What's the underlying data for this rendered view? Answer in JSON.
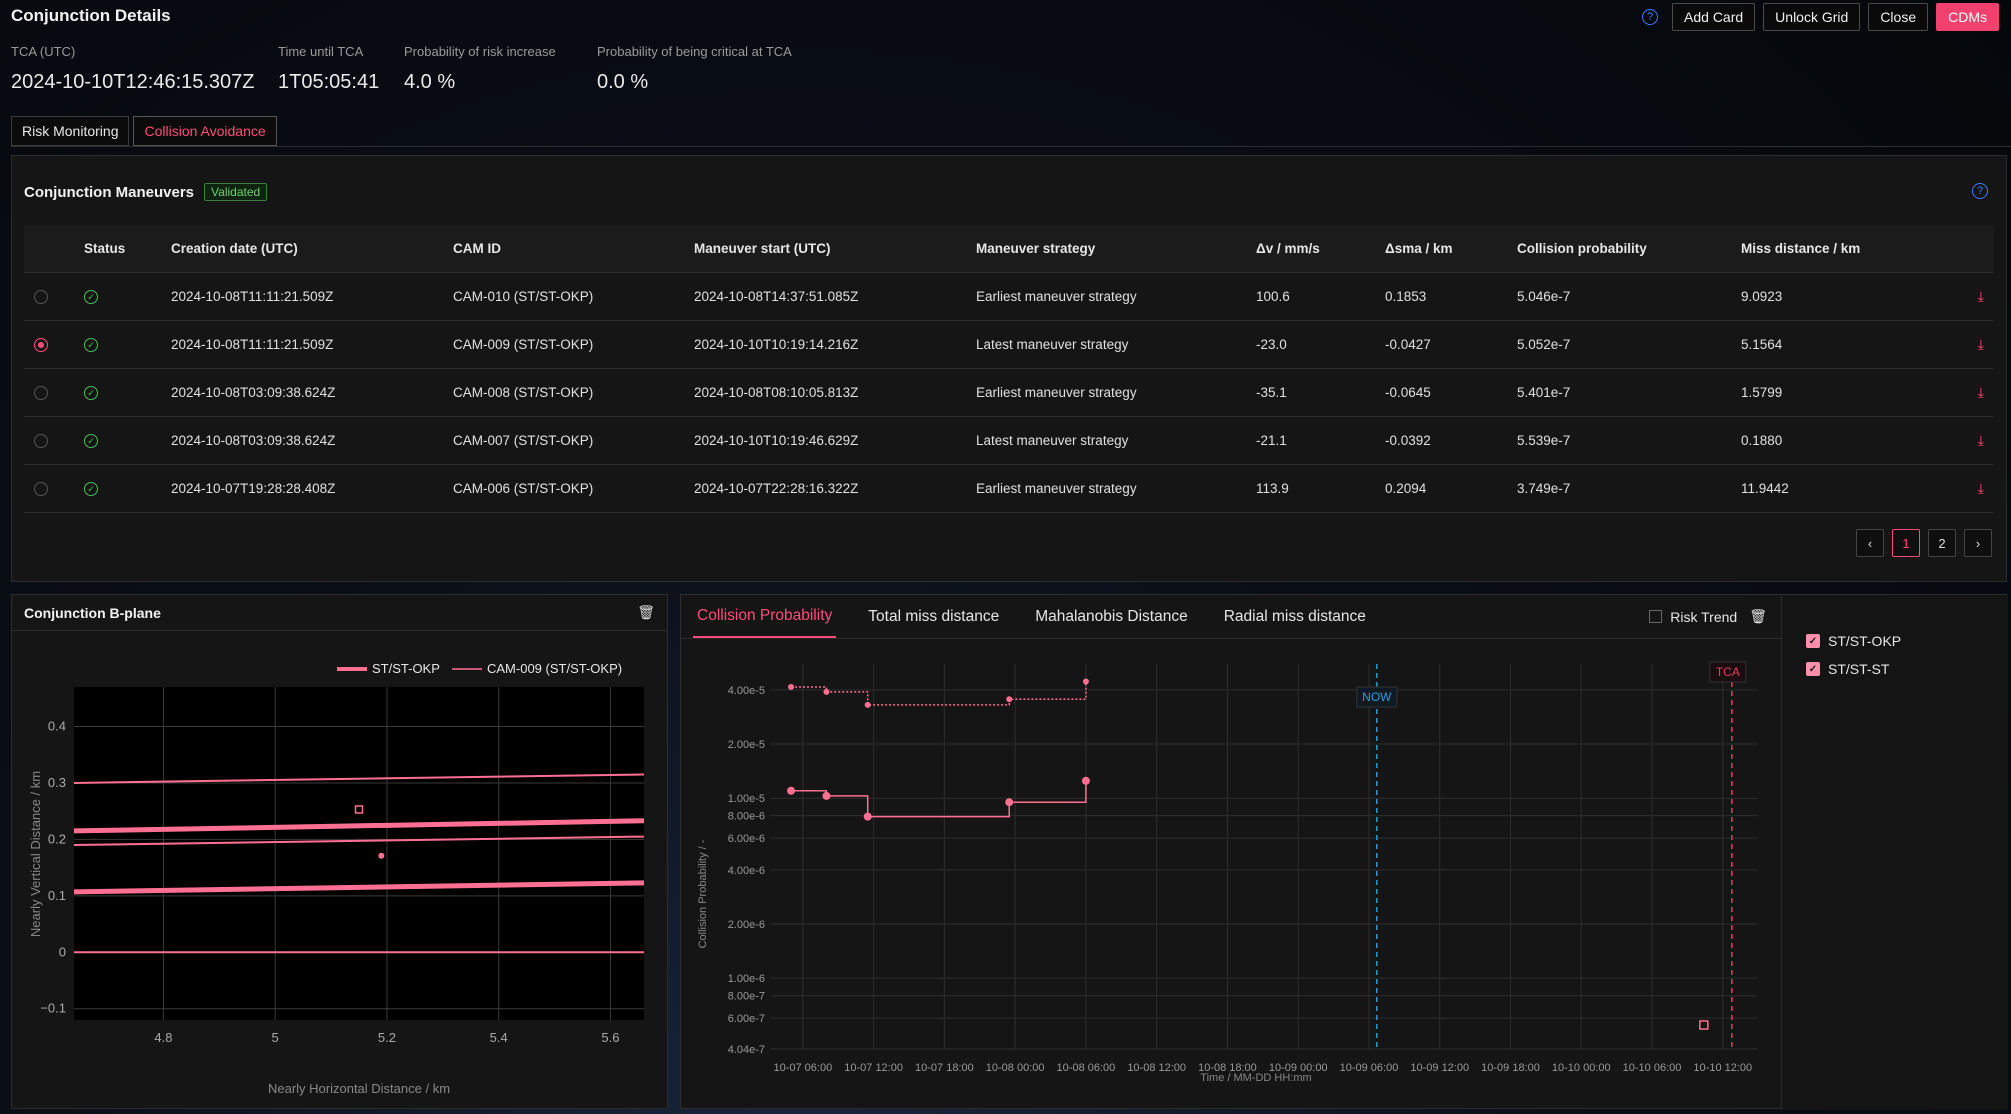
{
  "header": {
    "title": "Conjunction Details",
    "buttons": {
      "add_card": "Add Card",
      "unlock_grid": "Unlock Grid",
      "close": "Close",
      "cdms": "CDMs"
    },
    "help": "?"
  },
  "stats": [
    {
      "label": "TCA (UTC)",
      "value": "2024-10-10T12:46:15.307Z"
    },
    {
      "label": "Time until TCA",
      "value": "1T05:05:41"
    },
    {
      "label": "Probability of risk increase",
      "value": "4.0 %"
    },
    {
      "label": "Probability of being critical at TCA",
      "value": "0.0 %"
    }
  ],
  "tabs": [
    "Risk Monitoring",
    "Collision Avoidance"
  ],
  "maneuvers": {
    "title": "Conjunction Maneuvers",
    "badge": "Validated",
    "columns": [
      "Status",
      "Creation date (UTC)",
      "CAM ID",
      "Maneuver start (UTC)",
      "Maneuver strategy",
      "Δv / mm/s",
      "Δsma / km",
      "Collision probability",
      "Miss distance / km"
    ],
    "rows": [
      [
        "2024-10-08T11:11:21.509Z",
        "CAM-010 (ST/ST-OKP)",
        "2024-10-08T14:37:51.085Z",
        "Earliest maneuver strategy",
        "100.6",
        "0.1853",
        "5.046e-7",
        "9.0923"
      ],
      [
        "2024-10-08T11:11:21.509Z",
        "CAM-009 (ST/ST-OKP)",
        "2024-10-10T10:19:14.216Z",
        "Latest maneuver strategy",
        "-23.0",
        "-0.0427",
        "5.052e-7",
        "5.1564"
      ],
      [
        "2024-10-08T03:09:38.624Z",
        "CAM-008 (ST/ST-OKP)",
        "2024-10-08T08:10:05.813Z",
        "Earliest maneuver strategy",
        "-35.1",
        "-0.0645",
        "5.401e-7",
        "1.5799"
      ],
      [
        "2024-10-08T03:09:38.624Z",
        "CAM-007 (ST/ST-OKP)",
        "2024-10-10T10:19:46.629Z",
        "Latest maneuver strategy",
        "-21.1",
        "-0.0392",
        "5.539e-7",
        "0.1880"
      ],
      [
        "2024-10-07T19:28:28.408Z",
        "CAM-006 (ST/ST-OKP)",
        "2024-10-07T22:28:16.322Z",
        "Earliest maneuver strategy",
        "113.9",
        "0.2094",
        "3.749e-7",
        "11.9442"
      ]
    ],
    "selected_row": 1,
    "pages": [
      "1",
      "2"
    ],
    "current_page": 1
  },
  "bplane": {
    "title": "Conjunction B-plane",
    "legend": [
      "ST/ST-OKP",
      "CAM-009 (ST/ST-OKP)"
    ],
    "xlabel": "Nearly Horizontal Distance / km",
    "ylabel": "Nearly Vertical Distance / km",
    "xticks": [
      "4.8",
      "5",
      "5.2",
      "5.4",
      "5.6"
    ],
    "yticks": [
      "0.4",
      "0.3",
      "0.2",
      "0.1",
      "0",
      "−0.1"
    ]
  },
  "prob": {
    "tabs": [
      "Collision Probability",
      "Total miss distance",
      "Mahalanobis Distance",
      "Radial miss distance"
    ],
    "risk_trend": "Risk Trend",
    "legend": [
      "ST/ST-OKP",
      "ST/ST-ST"
    ],
    "ylabel": "Collision Probability / -",
    "xlabel": "Time / MM-DD HH:mm",
    "now_label": "NOW",
    "tca_label": "TCA",
    "yticks": [
      "4.00e-5",
      "2.00e-5",
      "1.00e-5",
      "8.00e-6",
      "6.00e-6",
      "4.00e-6",
      "2.00e-6",
      "1.00e-6",
      "8.00e-7",
      "6.00e-7",
      "4.04e-7"
    ],
    "xticks": [
      "10-07 06:00",
      "10-07 12:00",
      "10-07 18:00",
      "10-08 00:00",
      "10-08 06:00",
      "10-08 12:00",
      "10-08 18:00",
      "10-09 00:00",
      "10-09 06:00",
      "10-09 12:00",
      "10-09 18:00",
      "10-10 00:00",
      "10-10 06:00",
      "10-10 12:00"
    ]
  },
  "colors": {
    "accent": "#ff4d7a",
    "line": "#ff6f91",
    "now": "#2f9bd6",
    "tca": "#e0405a"
  },
  "chart_data": [
    {
      "type": "line",
      "title": "Conjunction B-plane",
      "xlabel": "Nearly Horizontal Distance / km",
      "ylabel": "Nearly Vertical Distance / km",
      "xlim": [
        4.64,
        5.66
      ],
      "ylim": [
        -0.12,
        0.47
      ],
      "series": [
        {
          "name": "ST/ST-OKP",
          "x": [
            4.64,
            5.66
          ],
          "upper": [
            0.215,
            0.233
          ],
          "lower": [
            0.107,
            0.123
          ]
        },
        {
          "name": "CAM-009 (ST/ST-OKP)",
          "x": [
            4.64,
            5.66
          ],
          "upper": [
            0.3,
            0.315
          ],
          "lower": [
            0.19,
            0.205
          ],
          "center": [
            0.0,
            0.0
          ]
        }
      ],
      "points": [
        {
          "x": 5.15,
          "y": 0.253,
          "marker": "square"
        },
        {
          "x": 5.19,
          "y": 0.171,
          "marker": "dot"
        }
      ]
    },
    {
      "type": "line",
      "ylabel": "Collision Probability / -",
      "xlabel": "Time / MM-DD HH:mm",
      "log_y": true,
      "series": [
        {
          "name": "ST/ST-OKP",
          "style": "solid",
          "x": [
            "10-07 05:00",
            "10-07 08:00",
            "10-07 11:30",
            "10-07 23:30",
            "10-08 06:00"
          ],
          "y": [
            1.1e-05,
            1.03e-05,
            7.9e-06,
            9.5e-06,
            1.25e-05
          ]
        },
        {
          "name": "ST/ST-ST",
          "style": "dotted",
          "x": [
            "10-07 05:00",
            "10-07 08:00",
            "10-07 11:30",
            "10-07 23:30",
            "10-08 06:00"
          ],
          "y": [
            4.15e-05,
            3.9e-05,
            3.3e-05,
            3.55e-05,
            4.45e-05
          ]
        }
      ],
      "now": "10-09 06:40",
      "tca": "10-10 12:46"
    }
  ]
}
